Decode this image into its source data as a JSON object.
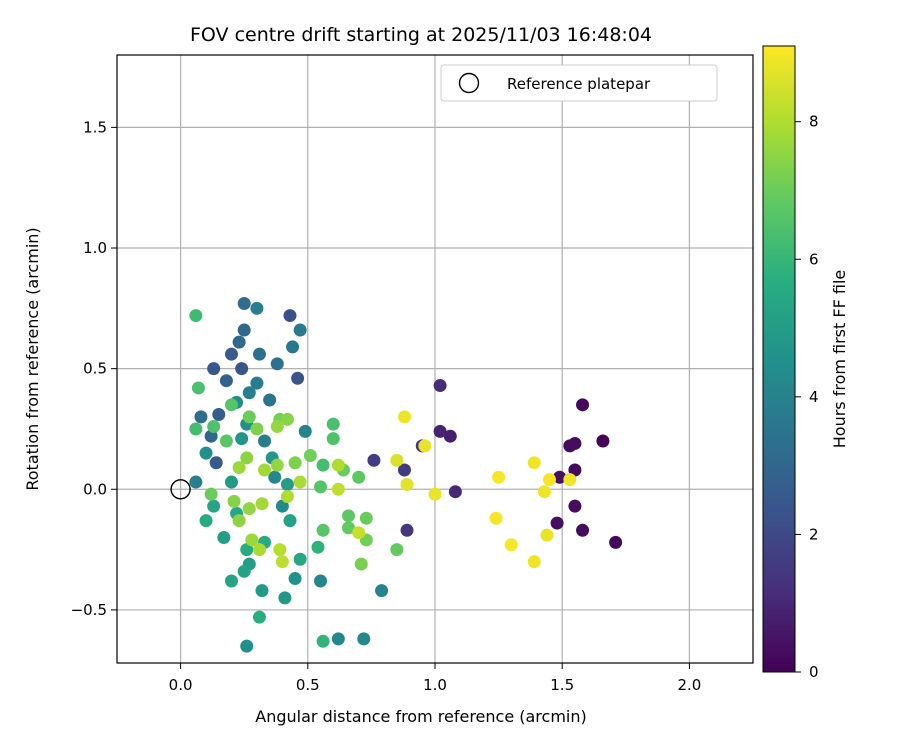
{
  "chart_data": {
    "type": "scatter",
    "title": "FOV centre drift starting at 2025/11/03 16:48:04",
    "xlabel": "Angular distance from reference (arcmin)",
    "ylabel": "Rotation from reference (arcmin)",
    "xlim": [
      -0.25,
      2.25
    ],
    "ylim": [
      -0.72,
      1.8
    ],
    "xticks": [
      0.0,
      0.5,
      1.0,
      1.5,
      2.0
    ],
    "xtick_labels": [
      "0.0",
      "0.5",
      "1.0",
      "1.5",
      "2.0"
    ],
    "yticks": [
      -0.5,
      0.0,
      0.5,
      1.0,
      1.5
    ],
    "ytick_labels": [
      "−0.5",
      "0.0",
      "0.5",
      "1.0",
      "1.5"
    ],
    "grid": true,
    "legend": {
      "position": "top-right",
      "entries": [
        "Reference platepar"
      ]
    },
    "reference_point": {
      "x": 0.0,
      "y": 0.0,
      "label": "Reference platepar"
    },
    "colorbar": {
      "label": "Hours from first FF file",
      "range": [
        0,
        9.1
      ],
      "ticks": [
        0,
        2,
        4,
        6,
        8
      ],
      "tick_labels": [
        "0",
        "2",
        "4",
        "6",
        "8"
      ],
      "colormap": "viridis"
    },
    "points": [
      {
        "x": 1.58,
        "y": 0.35,
        "h": 0.2
      },
      {
        "x": 1.66,
        "y": 0.2,
        "h": 0.1
      },
      {
        "x": 1.55,
        "y": 0.19,
        "h": 0.3
      },
      {
        "x": 1.53,
        "y": 0.18,
        "h": 0.3
      },
      {
        "x": 1.49,
        "y": 0.05,
        "h": 0.4
      },
      {
        "x": 1.55,
        "y": 0.08,
        "h": 0.2
      },
      {
        "x": 1.55,
        "y": -0.07,
        "h": 0.3
      },
      {
        "x": 1.48,
        "y": -0.14,
        "h": 0.4
      },
      {
        "x": 1.58,
        "y": -0.17,
        "h": 0.3
      },
      {
        "x": 1.71,
        "y": -0.22,
        "h": 0.2
      },
      {
        "x": 1.06,
        "y": 0.22,
        "h": 0.8
      },
      {
        "x": 1.02,
        "y": 0.24,
        "h": 0.9
      },
      {
        "x": 1.02,
        "y": 0.43,
        "h": 1.1
      },
      {
        "x": 0.95,
        "y": 0.18,
        "h": 1.3
      },
      {
        "x": 0.88,
        "y": 0.08,
        "h": 1.5
      },
      {
        "x": 1.08,
        "y": -0.01,
        "h": 1.0
      },
      {
        "x": 0.89,
        "y": -0.17,
        "h": 1.4
      },
      {
        "x": 0.76,
        "y": 0.12,
        "h": 1.6
      },
      {
        "x": 0.43,
        "y": 0.72,
        "h": 2.2
      },
      {
        "x": 0.46,
        "y": 0.46,
        "h": 2.3
      },
      {
        "x": 0.24,
        "y": 0.5,
        "h": 2.4
      },
      {
        "x": 0.2,
        "y": 0.56,
        "h": 2.6
      },
      {
        "x": 0.13,
        "y": 0.5,
        "h": 2.5
      },
      {
        "x": 0.18,
        "y": 0.45,
        "h": 2.8
      },
      {
        "x": 0.15,
        "y": 0.31,
        "h": 2.7
      },
      {
        "x": 0.14,
        "y": 0.11,
        "h": 2.6
      },
      {
        "x": 0.25,
        "y": 0.77,
        "h": 3.2
      },
      {
        "x": 0.25,
        "y": 0.66,
        "h": 3.0
      },
      {
        "x": 0.23,
        "y": 0.61,
        "h": 3.1
      },
      {
        "x": 0.31,
        "y": 0.56,
        "h": 3.3
      },
      {
        "x": 0.38,
        "y": 0.52,
        "h": 3.4
      },
      {
        "x": 0.44,
        "y": 0.59,
        "h": 3.6
      },
      {
        "x": 0.47,
        "y": 0.66,
        "h": 3.7
      },
      {
        "x": 0.3,
        "y": 0.75,
        "h": 3.9
      },
      {
        "x": 0.35,
        "y": 0.37,
        "h": 3.5
      },
      {
        "x": 0.49,
        "y": 0.24,
        "h": 4.0
      },
      {
        "x": 0.33,
        "y": 0.2,
        "h": 3.8
      },
      {
        "x": 0.37,
        "y": 0.05,
        "h": 4.2
      },
      {
        "x": 0.4,
        "y": -0.07,
        "h": 4.3
      },
      {
        "x": 0.06,
        "y": 0.03,
        "h": 3.9
      },
      {
        "x": 0.08,
        "y": 0.3,
        "h": 3.2
      },
      {
        "x": 0.12,
        "y": 0.22,
        "h": 3.0
      },
      {
        "x": 0.55,
        "y": -0.38,
        "h": 4.1
      },
      {
        "x": 0.62,
        "y": -0.62,
        "h": 4.2
      },
      {
        "x": 0.72,
        "y": -0.62,
        "h": 4.3
      },
      {
        "x": 0.79,
        "y": -0.42,
        "h": 4.0
      },
      {
        "x": 0.45,
        "y": -0.37,
        "h": 4.6
      },
      {
        "x": 0.41,
        "y": -0.45,
        "h": 4.8
      },
      {
        "x": 0.32,
        "y": -0.42,
        "h": 4.9
      },
      {
        "x": 0.26,
        "y": -0.65,
        "h": 4.5
      },
      {
        "x": 0.27,
        "y": -0.31,
        "h": 5.0
      },
      {
        "x": 0.25,
        "y": -0.34,
        "h": 5.2
      },
      {
        "x": 0.2,
        "y": -0.38,
        "h": 5.3
      },
      {
        "x": 0.17,
        "y": -0.2,
        "h": 5.1
      },
      {
        "x": 0.22,
        "y": -0.1,
        "h": 5.4
      },
      {
        "x": 0.26,
        "y": -0.25,
        "h": 5.6
      },
      {
        "x": 0.33,
        "y": -0.22,
        "h": 5.5
      },
      {
        "x": 0.31,
        "y": -0.53,
        "h": 5.7
      },
      {
        "x": 0.3,
        "y": 0.44,
        "h": 3.8
      },
      {
        "x": 0.27,
        "y": 0.4,
        "h": 3.9
      },
      {
        "x": 0.22,
        "y": 0.36,
        "h": 4.4
      },
      {
        "x": 0.26,
        "y": 0.27,
        "h": 4.5
      },
      {
        "x": 0.24,
        "y": 0.21,
        "h": 4.7
      },
      {
        "x": 0.2,
        "y": 0.03,
        "h": 4.9
      },
      {
        "x": 0.1,
        "y": 0.15,
        "h": 4.6
      },
      {
        "x": 0.13,
        "y": -0.07,
        "h": 5.3
      },
      {
        "x": 0.1,
        "y": -0.13,
        "h": 5.6
      },
      {
        "x": 0.54,
        "y": -0.24,
        "h": 5.8
      },
      {
        "x": 0.56,
        "y": -0.63,
        "h": 5.9
      },
      {
        "x": 0.36,
        "y": 0.13,
        "h": 4.8
      },
      {
        "x": 0.42,
        "y": 0.02,
        "h": 5.0
      },
      {
        "x": 0.43,
        "y": -0.13,
        "h": 5.2
      },
      {
        "x": 0.47,
        "y": -0.29,
        "h": 5.4
      },
      {
        "x": 0.6,
        "y": 0.27,
        "h": 6.4
      },
      {
        "x": 0.6,
        "y": 0.21,
        "h": 6.5
      },
      {
        "x": 0.56,
        "y": 0.1,
        "h": 6.3
      },
      {
        "x": 0.55,
        "y": 0.01,
        "h": 6.6
      },
      {
        "x": 0.56,
        "y": -0.17,
        "h": 6.7
      },
      {
        "x": 0.66,
        "y": -0.11,
        "h": 6.8
      },
      {
        "x": 0.66,
        "y": -0.16,
        "h": 6.9
      },
      {
        "x": 0.73,
        "y": -0.12,
        "h": 7.0
      },
      {
        "x": 0.73,
        "y": -0.21,
        "h": 7.1
      },
      {
        "x": 0.71,
        "y": -0.31,
        "h": 7.2
      },
      {
        "x": 0.85,
        "y": -0.25,
        "h": 6.9
      },
      {
        "x": 0.7,
        "y": 0.05,
        "h": 6.8
      },
      {
        "x": 0.64,
        "y": 0.08,
        "h": 7.0
      },
      {
        "x": 0.06,
        "y": 0.72,
        "h": 6.2
      },
      {
        "x": 0.07,
        "y": 0.42,
        "h": 6.4
      },
      {
        "x": 0.06,
        "y": 0.25,
        "h": 6.3
      },
      {
        "x": 0.13,
        "y": 0.26,
        "h": 6.5
      },
      {
        "x": 0.18,
        "y": 0.2,
        "h": 6.7
      },
      {
        "x": 0.2,
        "y": 0.35,
        "h": 6.6
      },
      {
        "x": 0.27,
        "y": 0.3,
        "h": 7.0
      },
      {
        "x": 0.39,
        "y": 0.29,
        "h": 7.2
      },
      {
        "x": 0.42,
        "y": 0.29,
        "h": 7.4
      },
      {
        "x": 0.38,
        "y": 0.26,
        "h": 7.6
      },
      {
        "x": 0.3,
        "y": 0.25,
        "h": 7.3
      },
      {
        "x": 0.26,
        "y": 0.13,
        "h": 7.5
      },
      {
        "x": 0.23,
        "y": 0.09,
        "h": 7.7
      },
      {
        "x": 0.33,
        "y": 0.08,
        "h": 7.8
      },
      {
        "x": 0.38,
        "y": 0.1,
        "h": 7.6
      },
      {
        "x": 0.45,
        "y": 0.11,
        "h": 7.3
      },
      {
        "x": 0.51,
        "y": 0.14,
        "h": 7.1
      },
      {
        "x": 0.47,
        "y": 0.03,
        "h": 7.9
      },
      {
        "x": 0.42,
        "y": -0.03,
        "h": 8.0
      },
      {
        "x": 0.32,
        "y": -0.06,
        "h": 7.8
      },
      {
        "x": 0.27,
        "y": -0.08,
        "h": 7.6
      },
      {
        "x": 0.23,
        "y": -0.13,
        "h": 7.5
      },
      {
        "x": 0.28,
        "y": -0.21,
        "h": 7.7
      },
      {
        "x": 0.31,
        "y": -0.25,
        "h": 7.9
      },
      {
        "x": 0.39,
        "y": -0.25,
        "h": 8.1
      },
      {
        "x": 0.4,
        "y": -0.3,
        "h": 8.2
      },
      {
        "x": 0.12,
        "y": -0.02,
        "h": 7.0
      },
      {
        "x": 0.21,
        "y": -0.05,
        "h": 7.4
      },
      {
        "x": 0.62,
        "y": 0.1,
        "h": 8.0
      },
      {
        "x": 0.62,
        "y": 0.0,
        "h": 8.2
      },
      {
        "x": 0.7,
        "y": -0.18,
        "h": 8.3
      },
      {
        "x": 0.85,
        "y": 0.12,
        "h": 8.6
      },
      {
        "x": 0.89,
        "y": 0.02,
        "h": 8.7
      },
      {
        "x": 0.96,
        "y": 0.18,
        "h": 8.8
      },
      {
        "x": 0.88,
        "y": 0.3,
        "h": 8.9
      },
      {
        "x": 1.0,
        "y": -0.02,
        "h": 8.8
      },
      {
        "x": 1.25,
        "y": 0.05,
        "h": 9.0
      },
      {
        "x": 1.24,
        "y": -0.12,
        "h": 9.0
      },
      {
        "x": 1.3,
        "y": -0.23,
        "h": 9.0
      },
      {
        "x": 1.39,
        "y": 0.11,
        "h": 8.9
      },
      {
        "x": 1.43,
        "y": -0.01,
        "h": 8.9
      },
      {
        "x": 1.45,
        "y": 0.04,
        "h": 9.0
      },
      {
        "x": 1.53,
        "y": 0.04,
        "h": 8.9
      },
      {
        "x": 1.44,
        "y": -0.19,
        "h": 8.8
      },
      {
        "x": 1.39,
        "y": -0.3,
        "h": 8.9
      }
    ]
  }
}
